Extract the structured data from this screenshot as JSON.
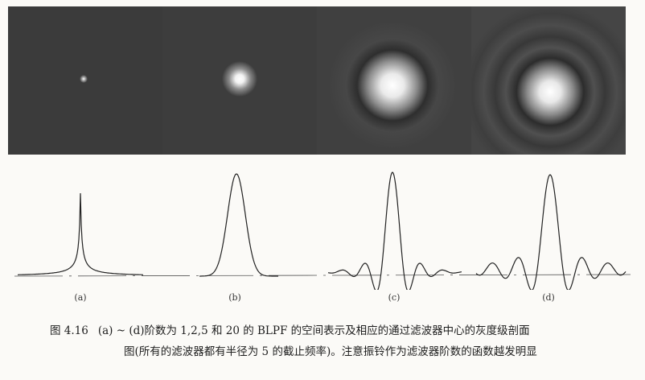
{
  "figure": {
    "panels": [
      {
        "label": "(a)",
        "order": 1
      },
      {
        "label": "(b)",
        "order": 2
      },
      {
        "label": "(c)",
        "order": 5
      },
      {
        "label": "(d)",
        "order": 20
      }
    ],
    "caption": {
      "figure_number": "图 4.16",
      "line1": "(a) ~ (d)阶数为 1,2,5 和 20 的 BLPF 的空间表示及相应的通过滤波器中心的灰度级剖面",
      "line2": "图(所有的滤波器都有半径为 5 的截止频率)。注意振铃作为滤波器阶数的函数越发明显"
    }
  },
  "colors": {
    "panel_background": "#3b3b3b",
    "curve": "#222222",
    "baseline": "#555555"
  }
}
